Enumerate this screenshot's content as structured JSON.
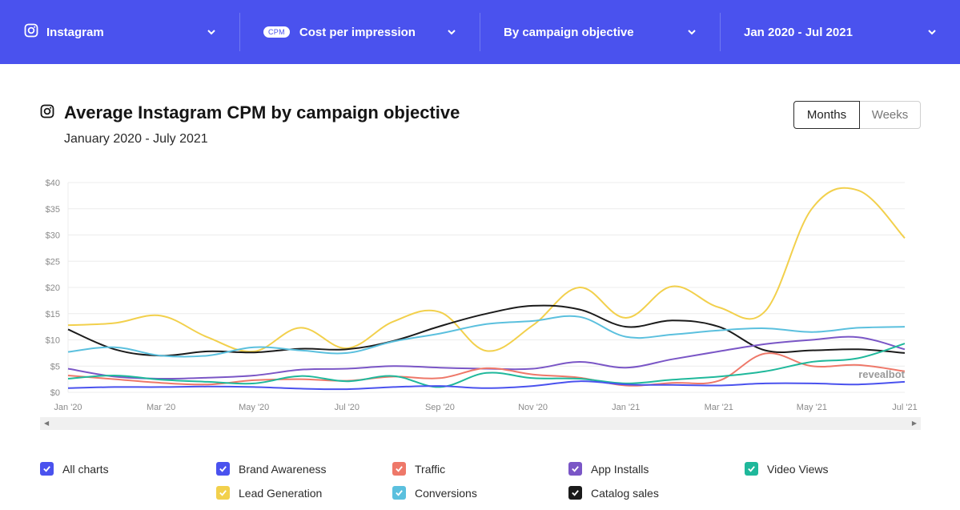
{
  "filters": {
    "platform": "Instagram",
    "metric_badge": "CPM",
    "metric": "Cost per impression",
    "breakdown": "By campaign objective",
    "range": "Jan 2020 - Jul 2021"
  },
  "header": {
    "title": "Average Instagram CPM by campaign objective",
    "subtitle": "January 2020 - July 2021"
  },
  "toggle": {
    "months": "Months",
    "weeks": "Weeks",
    "active": "Months"
  },
  "watermark": "revealbot",
  "legend": [
    {
      "label": "All charts",
      "color": "#4a52ee"
    },
    {
      "label": "Brand Awareness",
      "color": "#4a52ee"
    },
    {
      "label": "Traffic",
      "color": "#ee7869"
    },
    {
      "label": "App Installs",
      "color": "#7a56c6"
    },
    {
      "label": "Video Views",
      "color": "#1fb89b"
    },
    {
      "label": "Lead Generation",
      "color": "#f2d04c"
    },
    {
      "label": "Conversions",
      "color": "#5bc0de"
    },
    {
      "label": "Catalog sales",
      "color": "#1b1b1b"
    }
  ],
  "chart_data": {
    "type": "line",
    "x": [
      "Jan '20",
      "Feb '20",
      "Mar '20",
      "Apr '20",
      "May '20",
      "Jun '20",
      "Jul '20",
      "Aug '20",
      "Sep '20",
      "Oct '20",
      "Nov '20",
      "Dec '20",
      "Jan '21",
      "Feb '21",
      "Mar '21",
      "Apr '21",
      "May '21",
      "Jun '21",
      "Jul '21"
    ],
    "tick_labels": [
      "Jan '20",
      "Mar '20",
      "May '20",
      "Jul '20",
      "Sep '20",
      "Nov '20",
      "Jan '21",
      "Mar '21",
      "May '21",
      "Jul '21"
    ],
    "y_ticks": [
      "$0",
      "$5",
      "$10",
      "$15",
      "$20",
      "$25",
      "$30",
      "$35",
      "$40"
    ],
    "ylim": [
      0,
      40
    ],
    "grid": true,
    "series": [
      {
        "name": "Lead Generation",
        "color": "#f2d04c",
        "values": [
          12.8,
          13.2,
          14.6,
          10.5,
          7.8,
          12.3,
          8.4,
          13.5,
          15.3,
          7.9,
          12.8,
          20,
          14.2,
          20.2,
          16.2,
          15.5,
          35,
          38.5,
          29.4
        ]
      },
      {
        "name": "Catalog sales",
        "color": "#1b1b1b",
        "values": [
          12,
          8.2,
          7,
          7.8,
          7.6,
          8.3,
          8.2,
          9.8,
          12.6,
          15,
          16.5,
          15.8,
          12.5,
          13.7,
          12.5,
          8,
          8,
          8.2,
          7.5
        ]
      },
      {
        "name": "Conversions",
        "color": "#5bc0de",
        "values": [
          7.7,
          8.6,
          7,
          7,
          8.6,
          8,
          7.5,
          9.7,
          11.2,
          13,
          13.6,
          14.4,
          10.6,
          11,
          11.8,
          12.2,
          11.5,
          12.3,
          12.5
        ]
      },
      {
        "name": "App Installs",
        "color": "#7a56c6",
        "values": [
          4.5,
          3,
          2.6,
          2.8,
          3.2,
          4.3,
          4.5,
          5,
          4.7,
          4.5,
          4.5,
          5.8,
          4.7,
          6.3,
          7.8,
          9.2,
          10,
          10.5,
          8.2
        ]
      },
      {
        "name": "Traffic",
        "color": "#ee7869",
        "values": [
          3.2,
          2.5,
          1.8,
          1.5,
          2.3,
          2.5,
          2.2,
          3,
          2.7,
          4.6,
          3.4,
          2.8,
          1.3,
          1.8,
          2.2,
          7.4,
          5,
          5.2,
          4
        ]
      },
      {
        "name": "Video Views",
        "color": "#1fb89b",
        "values": [
          2.6,
          3.2,
          2.4,
          2,
          1.7,
          3.1,
          2.1,
          3.1,
          1,
          3.7,
          2.7,
          2.6,
          1.7,
          2.4,
          3,
          4,
          5.8,
          6.5,
          9.3
        ]
      },
      {
        "name": "Brand Awareness",
        "color": "#4a52ee",
        "values": [
          0.8,
          1,
          1,
          1.1,
          1,
          0.7,
          0.6,
          1,
          1.2,
          0.8,
          1.2,
          2.1,
          1.5,
          1.4,
          1.3,
          1.7,
          1.7,
          1.5,
          2
        ]
      }
    ]
  }
}
